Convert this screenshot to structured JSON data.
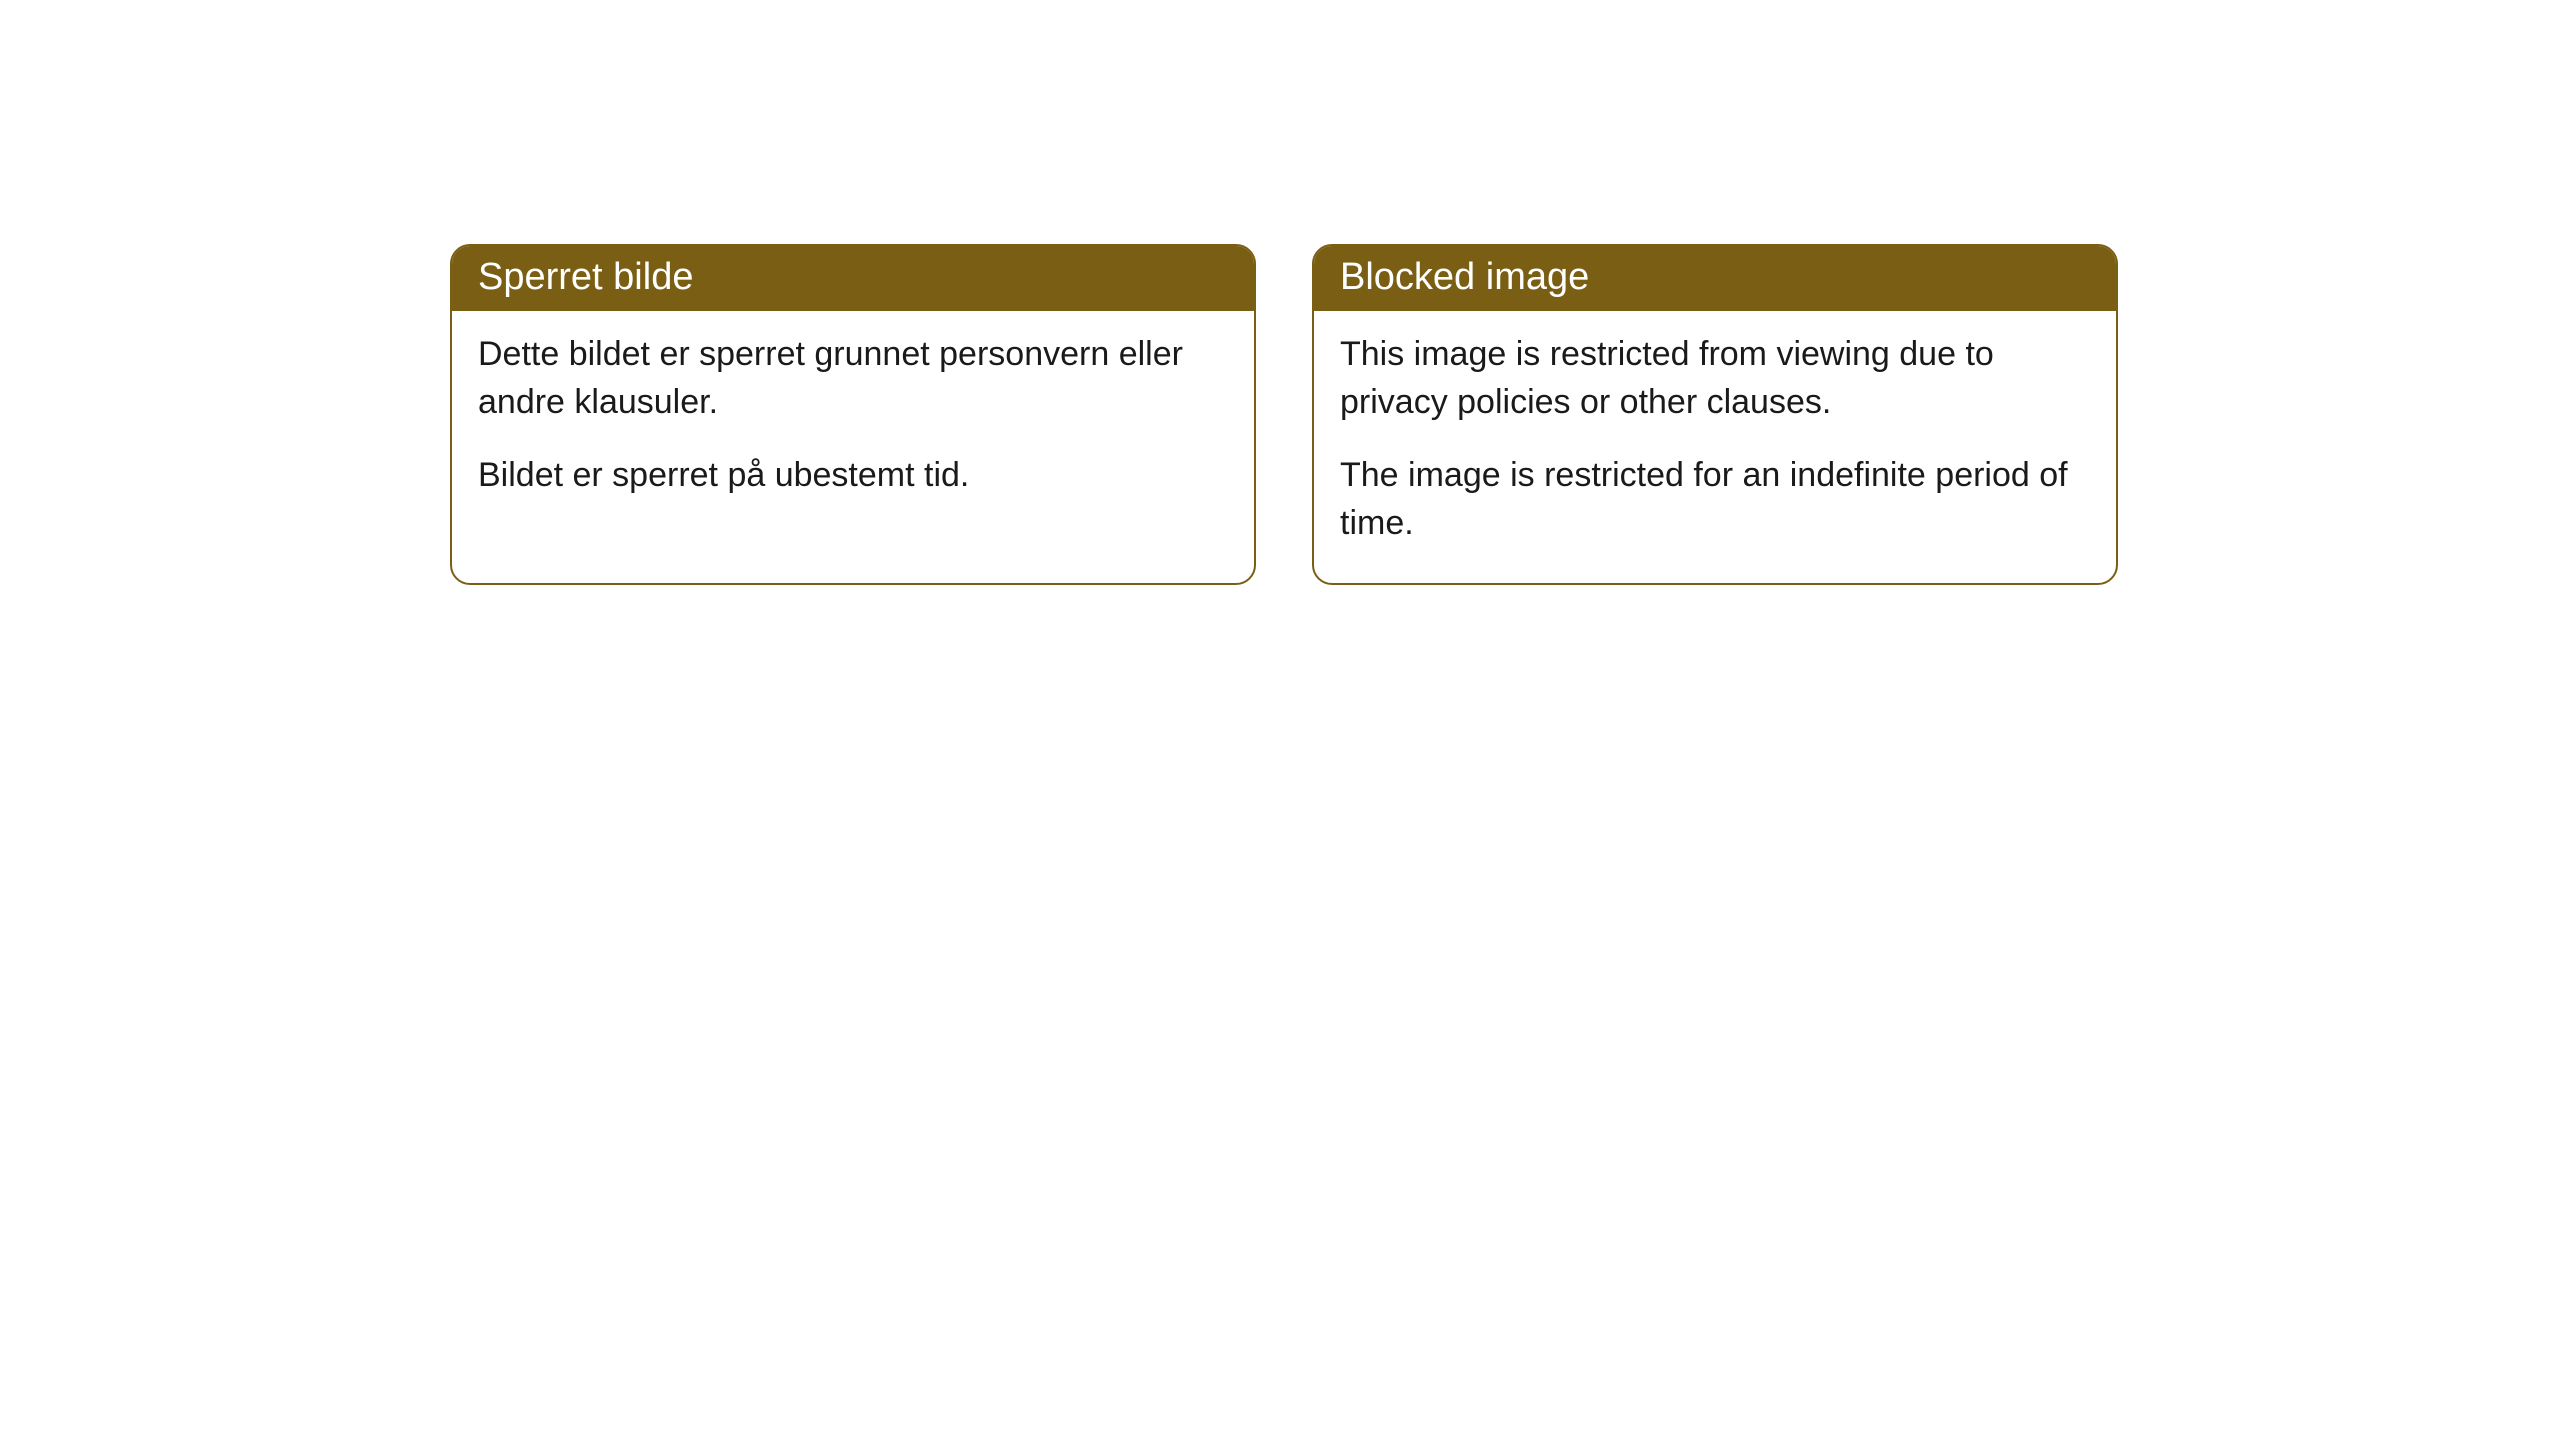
{
  "cards": [
    {
      "title": "Sperret bilde",
      "paragraph1": "Dette bildet er sperret grunnet personvern eller andre klausuler.",
      "paragraph2": "Bildet er sperret på ubestemt tid."
    },
    {
      "title": "Blocked image",
      "paragraph1": "This image is restricted from viewing due to privacy policies or other clauses.",
      "paragraph2": "The image is restricted for an indefinite period of time."
    }
  ],
  "style": {
    "header_bg_color": "#7a5e14",
    "header_text_color": "#ffffff",
    "border_color": "#7a5e14",
    "body_bg_color": "#ffffff",
    "body_text_color": "#1a1a1a",
    "border_radius": 20,
    "title_fontsize": 38,
    "body_fontsize": 34
  }
}
